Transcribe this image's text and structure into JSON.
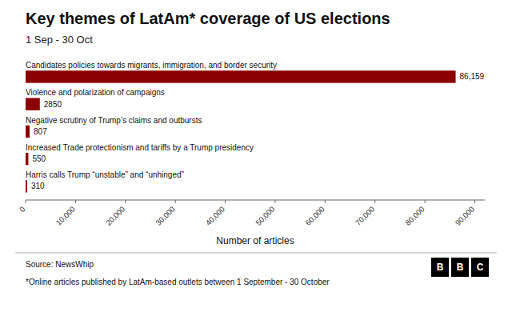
{
  "chart_data": {
    "type": "bar",
    "orientation": "horizontal",
    "title": "Key themes of LatAm* coverage of US elections",
    "subtitle": "1 Sep - 30 Oct",
    "categories": [
      "Candidates policies towards migrants, immigration, and border security",
      "Violence and polarization of campaigns",
      "Negative scrutiny of Trump’s claims and outbursts",
      "Increased Trade protectionism and tariffs by a Trump presidency",
      "Harris calls Trump “unstable” and “unhinged”"
    ],
    "values": [
      86159,
      2850,
      807,
      550,
      310
    ],
    "value_labels": [
      "86,159",
      "2850",
      "807",
      "550",
      "310"
    ],
    "data_labels": true,
    "color": "#8B0000",
    "xlabel": "Number of articles",
    "xlim": [
      0,
      92000
    ],
    "xticks": [
      0,
      {
        "value": 10000,
        "label": "10,000"
      },
      {
        "value": 20000,
        "label": "20,000"
      },
      {
        "value": 30000,
        "label": "30,000"
      },
      {
        "value": 40000,
        "label": "40,000"
      },
      {
        "value": 50000,
        "label": "50,000"
      },
      {
        "value": 60000,
        "label": "60,000"
      },
      {
        "value": 70000,
        "label": "70,000"
      },
      {
        "value": 80000,
        "label": "80,000"
      },
      {
        "value": 90000,
        "label": "90,000"
      }
    ],
    "grid": false,
    "annotations": [
      "Source: NewsWhip",
      "*Online articles published by LatAm-based outlets between 1 September - 30 October",
      "B",
      "B",
      "C"
    ]
  }
}
